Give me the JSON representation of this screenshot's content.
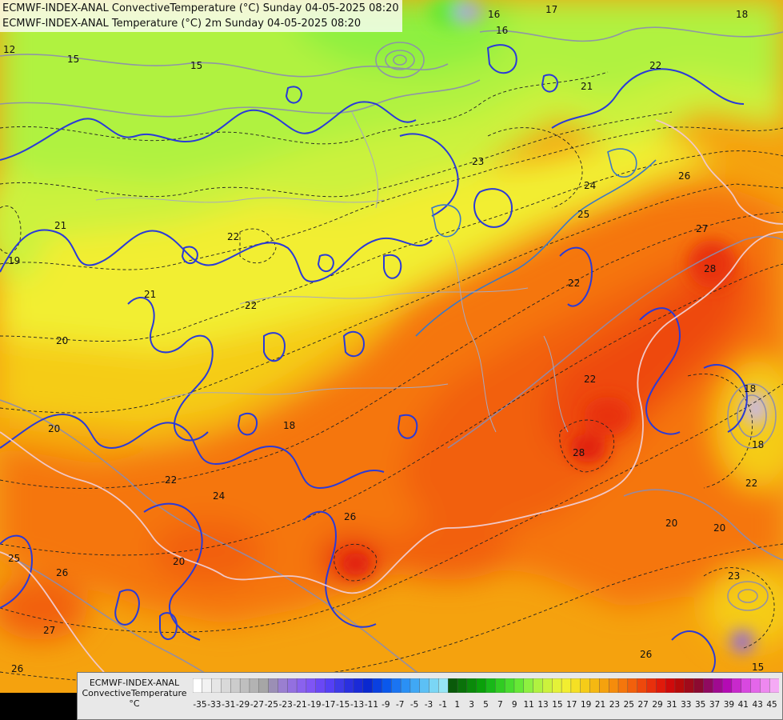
{
  "header": {
    "line1": "ECMWF-INDEX-ANAL ConvectiveTemperature (°C) Sunday 04-05-2025 08:20",
    "line2": "ECMWF-INDEX-ANAL Temperature (°C) 2m Sunday 04-05-2025 08:20"
  },
  "legend": {
    "model": "ECMWF-INDEX-ANAL",
    "variable": "ConvectiveTemperature",
    "unit": "°C",
    "tick_labels": [
      "-35",
      "-33",
      "-31",
      "-29",
      "-27",
      "-25",
      "-23",
      "-21",
      "-19",
      "-17",
      "-15",
      "-13",
      "-11",
      "-9",
      "-7",
      "-5",
      "-3",
      "-1",
      "1",
      "3",
      "5",
      "7",
      "9",
      "11",
      "13",
      "15",
      "17",
      "19",
      "21",
      "23",
      "25",
      "27",
      "29",
      "31",
      "33",
      "35",
      "37",
      "39",
      "41",
      "43",
      "45"
    ],
    "colors": [
      "#ffffff",
      "#f2f2f2",
      "#e6e6e6",
      "#d9d9d9",
      "#cccccc",
      "#bfbfbf",
      "#b3b3b3",
      "#a6a6a6",
      "#9b8fb5",
      "#9a7fd0",
      "#9370e0",
      "#8a62ee",
      "#7f55f5",
      "#6a48f5",
      "#5540f5",
      "#3e3ae8",
      "#2a30e0",
      "#1a2ad8",
      "#0a28d0",
      "#0a40e0",
      "#0a58ec",
      "#1a74f2",
      "#2a90f5",
      "#40a8f5",
      "#5cc0f5",
      "#7ad6f5",
      "#96e6f5",
      "#0a5a0a",
      "#0a720a",
      "#0a8a0a",
      "#0aa00a",
      "#18b818",
      "#30cc22",
      "#48dc2e",
      "#66e836",
      "#8ef040",
      "#b0f240",
      "#ccf23c",
      "#e4f238",
      "#f2ee30",
      "#f5e024",
      "#f5cc18",
      "#f5b812",
      "#f5a20e",
      "#f58c0c",
      "#f5760c",
      "#f2600c",
      "#ee480c",
      "#e8300c",
      "#e01a0a",
      "#d00a0a",
      "#b80a0a",
      "#a00a1a",
      "#8c0a30",
      "#900a60",
      "#a00a90",
      "#b40ab4",
      "#c828cc",
      "#d848e0",
      "#e466ea",
      "#ee88f0",
      "#f5aaf5"
    ]
  },
  "map_colors": {
    "warm_core": "#e8300c",
    "hot": "#f2600c",
    "orange": "#f5760c",
    "light_orange": "#f5a20e",
    "yellow_orange": "#f5cc18",
    "yellow": "#f2ee30",
    "yellow_green": "#ccf23c",
    "lime": "#b0f240",
    "green": "#66e836",
    "contour_blue": "#2a3ad8",
    "contour_gray": "#8c8cb0",
    "border_pink": "#f0c8c8"
  },
  "contour_labels": [
    {
      "text": "12"
    },
    {
      "text": "15"
    },
    {
      "text": "15"
    },
    {
      "text": "16"
    },
    {
      "text": "17"
    },
    {
      "text": "18"
    },
    {
      "text": "19"
    },
    {
      "text": "21"
    },
    {
      "text": "22"
    },
    {
      "text": "21"
    },
    {
      "text": "22"
    },
    {
      "text": "23"
    },
    {
      "text": "24"
    },
    {
      "text": "25"
    },
    {
      "text": "26"
    },
    {
      "text": "27"
    },
    {
      "text": "28"
    },
    {
      "text": "22"
    },
    {
      "text": "20"
    },
    {
      "text": "21"
    },
    {
      "text": "22"
    },
    {
      "text": "20"
    },
    {
      "text": "18"
    },
    {
      "text": "22"
    },
    {
      "text": "24"
    },
    {
      "text": "26"
    },
    {
      "text": "25"
    },
    {
      "text": "26"
    },
    {
      "text": "27"
    },
    {
      "text": "20"
    },
    {
      "text": "26"
    },
    {
      "text": "28"
    },
    {
      "text": "20"
    },
    {
      "text": "22"
    },
    {
      "text": "20"
    },
    {
      "text": "23"
    },
    {
      "text": "18"
    },
    {
      "text": "22"
    },
    {
      "text": "26"
    },
    {
      "text": "16"
    },
    {
      "text": "15"
    },
    {
      "text": "18"
    }
  ]
}
